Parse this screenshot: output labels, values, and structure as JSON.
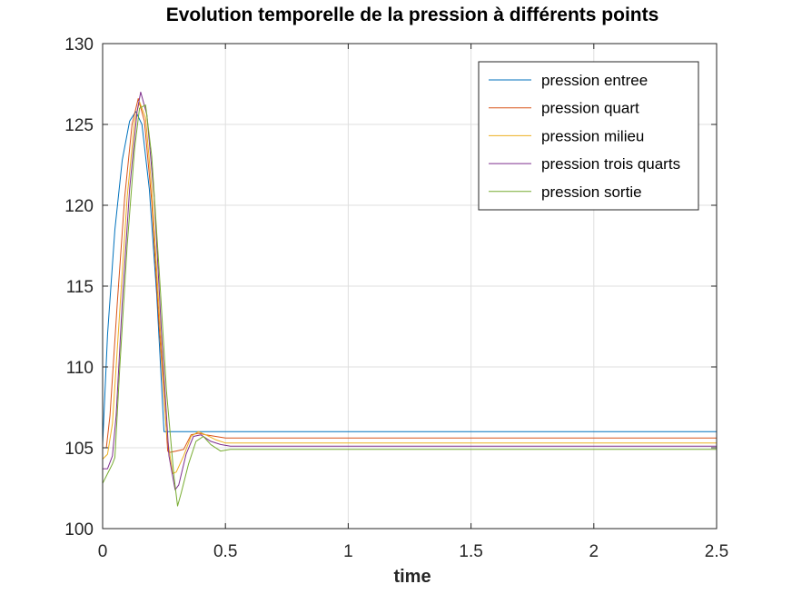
{
  "chart_data": {
    "type": "line",
    "title": "Evolution temporelle de la pression à différents points",
    "xlabel": "time",
    "ylabel": "",
    "xlim": [
      0,
      2.5
    ],
    "ylim": [
      100,
      130
    ],
    "xticks": [
      "0",
      "0.5",
      "1",
      "1.5",
      "2",
      "2.5"
    ],
    "yticks": [
      "100",
      "105",
      "110",
      "115",
      "120",
      "125",
      "130"
    ],
    "grid": true,
    "legend_position": "top-right",
    "series": [
      {
        "name": "pression entree",
        "color": "#0072BD",
        "x": [
          0,
          0.02,
          0.05,
          0.08,
          0.11,
          0.135,
          0.16,
          0.19,
          0.22,
          0.25,
          0.3,
          0.5,
          1.0,
          1.5,
          2.0,
          2.5
        ],
        "y": [
          105.2,
          112,
          118.5,
          122.8,
          125.2,
          125.8,
          125,
          121,
          114.5,
          106,
          106,
          106,
          106,
          106,
          106,
          106
        ]
      },
      {
        "name": "pression quart",
        "color": "#D95319",
        "x": [
          0,
          0.015,
          0.03,
          0.06,
          0.09,
          0.12,
          0.145,
          0.17,
          0.2,
          0.23,
          0.265,
          0.27,
          0.3,
          0.33,
          0.36,
          0.39,
          0.42,
          0.46,
          0.5,
          0.6,
          1.0,
          1.5,
          2.0,
          2.5
        ],
        "y": [
          105,
          105,
          107,
          114,
          120.5,
          125,
          126.6,
          125.2,
          120.2,
          112.5,
          104.8,
          104.7,
          104.8,
          104.9,
          105.8,
          105.9,
          105.8,
          105.7,
          105.6,
          105.6,
          105.6,
          105.6,
          105.6,
          105.6
        ]
      },
      {
        "name": "pression milieu",
        "color": "#EDB120",
        "x": [
          0,
          0.02,
          0.04,
          0.07,
          0.1,
          0.13,
          0.15,
          0.175,
          0.2,
          0.23,
          0.26,
          0.285,
          0.3,
          0.33,
          0.36,
          0.39,
          0.42,
          0.46,
          0.5,
          0.6,
          1.0,
          1.5,
          2.0,
          2.5
        ],
        "y": [
          104.3,
          104.6,
          106.5,
          113.5,
          120.5,
          125.2,
          126.4,
          125.4,
          121,
          113.5,
          106,
          103.4,
          103.5,
          104.5,
          105.7,
          106,
          105.8,
          105.5,
          105.3,
          105.3,
          105.3,
          105.3,
          105.3,
          105.3
        ]
      },
      {
        "name": "pression trois quarts",
        "color": "#7E2F8E",
        "x": [
          0,
          0.02,
          0.04,
          0.055,
          0.08,
          0.11,
          0.14,
          0.155,
          0.18,
          0.21,
          0.24,
          0.27,
          0.295,
          0.31,
          0.34,
          0.37,
          0.4,
          0.44,
          0.48,
          0.52,
          0.6,
          1.0,
          1.5,
          2.0,
          2.5
        ],
        "y": [
          103.7,
          103.7,
          104.5,
          107,
          114,
          121,
          125.8,
          127,
          125.6,
          120.5,
          112,
          104.5,
          102.4,
          102.7,
          104.6,
          105.7,
          105.8,
          105.4,
          105.2,
          105.1,
          105.1,
          105.1,
          105.1,
          105.1,
          105.1
        ]
      },
      {
        "name": "pression sortie",
        "color": "#77AC30",
        "x": [
          0,
          0.02,
          0.04,
          0.05,
          0.07,
          0.1,
          0.13,
          0.15,
          0.175,
          0.2,
          0.23,
          0.26,
          0.29,
          0.305,
          0.32,
          0.35,
          0.38,
          0.41,
          0.44,
          0.48,
          0.52,
          0.6,
          1.0,
          1.5,
          2.0,
          2.5
        ],
        "y": [
          102.8,
          103.4,
          104,
          104.4,
          110,
          117.5,
          123.5,
          126,
          126.2,
          123,
          116,
          108.5,
          103.3,
          101.4,
          102.2,
          104,
          105.4,
          105.7,
          105.2,
          104.8,
          104.9,
          104.9,
          104.9,
          104.9,
          104.9,
          104.9
        ]
      }
    ]
  }
}
